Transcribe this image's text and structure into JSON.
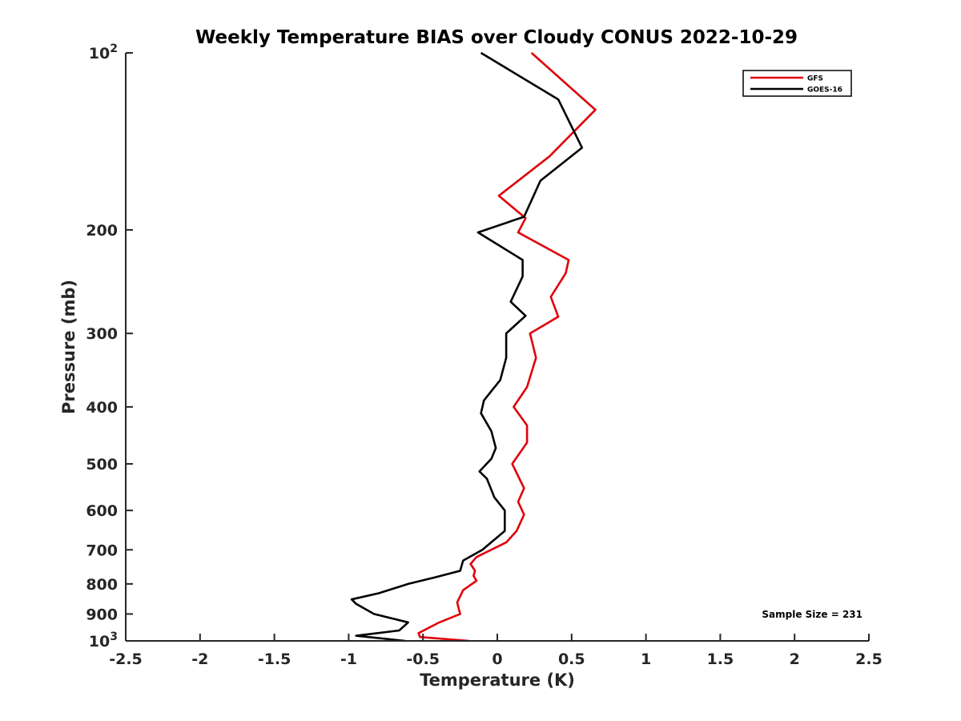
{
  "chart_data": {
    "type": "line",
    "title": "Weekly Temperature BIAS over Cloudy CONUS 2022-10-29",
    "xlabel": "Temperature (K)",
    "ylabel": "Pressure (mb)",
    "xlim": [
      -2.5,
      2.5
    ],
    "ylim": [
      100,
      1000
    ],
    "y_scale": "log",
    "y_reversed": true,
    "grid": false,
    "legend_position": "top-right",
    "x_ticks": [
      {
        "value": -2.5,
        "label": "-2.5"
      },
      {
        "value": -2,
        "label": "-2"
      },
      {
        "value": -1.5,
        "label": "-1.5"
      },
      {
        "value": -1,
        "label": "-1"
      },
      {
        "value": -0.5,
        "label": "-0.5"
      },
      {
        "value": 0,
        "label": "0"
      },
      {
        "value": 0.5,
        "label": "0.5"
      },
      {
        "value": 1,
        "label": "1"
      },
      {
        "value": 1.5,
        "label": "1.5"
      },
      {
        "value": 2,
        "label": "2"
      },
      {
        "value": 2.5,
        "label": "2.5"
      }
    ],
    "y_ticks": [
      {
        "value": 100,
        "base": "10",
        "exp": "2"
      },
      {
        "value": 200,
        "label": "200"
      },
      {
        "value": 300,
        "label": "300"
      },
      {
        "value": 400,
        "label": "400"
      },
      {
        "value": 500,
        "label": "500"
      },
      {
        "value": 600,
        "label": "600"
      },
      {
        "value": 700,
        "label": "700"
      },
      {
        "value": 800,
        "label": "800"
      },
      {
        "value": 900,
        "label": "900"
      },
      {
        "value": 1000,
        "base": "10",
        "exp": "3"
      }
    ],
    "series": [
      {
        "name": "GFS",
        "color": "#e0000b",
        "points": [
          [
            0.23,
            100
          ],
          [
            0.66,
            125
          ],
          [
            0.35,
            150
          ],
          [
            0.01,
            175
          ],
          [
            0.19,
            191
          ],
          [
            0.14,
            202
          ],
          [
            0.48,
            225
          ],
          [
            0.46,
            237
          ],
          [
            0.36,
            260
          ],
          [
            0.41,
            281
          ],
          [
            0.22,
            300
          ],
          [
            0.26,
            330
          ],
          [
            0.2,
            370
          ],
          [
            0.11,
            400
          ],
          [
            0.2,
            430
          ],
          [
            0.2,
            460
          ],
          [
            0.1,
            500
          ],
          [
            0.18,
            550
          ],
          [
            0.14,
            580
          ],
          [
            0.18,
            610
          ],
          [
            0.13,
            650
          ],
          [
            0.06,
            680
          ],
          [
            -0.14,
            720
          ],
          [
            -0.18,
            740
          ],
          [
            -0.15,
            760
          ],
          [
            -0.16,
            775
          ],
          [
            -0.14,
            790
          ],
          [
            -0.23,
            820
          ],
          [
            -0.27,
            860
          ],
          [
            -0.26,
            880
          ],
          [
            -0.25,
            900
          ],
          [
            -0.39,
            930
          ],
          [
            -0.53,
            970
          ],
          [
            -0.52,
            985
          ],
          [
            -0.19,
            1000
          ]
        ]
      },
      {
        "name": "GOES-16",
        "color": "#000000",
        "points": [
          [
            -0.11,
            100
          ],
          [
            0.41,
            120
          ],
          [
            0.57,
            145
          ],
          [
            0.29,
            165
          ],
          [
            0.18,
            190
          ],
          [
            -0.13,
            202
          ],
          [
            0.17,
            225
          ],
          [
            0.17,
            240
          ],
          [
            0.09,
            265
          ],
          [
            0.19,
            280
          ],
          [
            0.06,
            300
          ],
          [
            0.06,
            330
          ],
          [
            0.02,
            360
          ],
          [
            -0.09,
            390
          ],
          [
            -0.11,
            410
          ],
          [
            -0.04,
            440
          ],
          [
            -0.01,
            470
          ],
          [
            -0.04,
            490
          ],
          [
            -0.12,
            515
          ],
          [
            -0.07,
            530
          ],
          [
            -0.02,
            570
          ],
          [
            0.05,
            600
          ],
          [
            0.05,
            650
          ],
          [
            -0.1,
            700
          ],
          [
            -0.23,
            730
          ],
          [
            -0.25,
            760
          ],
          [
            -0.42,
            780
          ],
          [
            -0.6,
            800
          ],
          [
            -0.8,
            830
          ],
          [
            -0.98,
            850
          ],
          [
            -0.95,
            865
          ],
          [
            -0.83,
            900
          ],
          [
            -0.6,
            930
          ],
          [
            -0.66,
            960
          ],
          [
            -0.95,
            980
          ],
          [
            -0.62,
            1000
          ]
        ]
      }
    ],
    "annotation": "Sample Size = 231"
  }
}
